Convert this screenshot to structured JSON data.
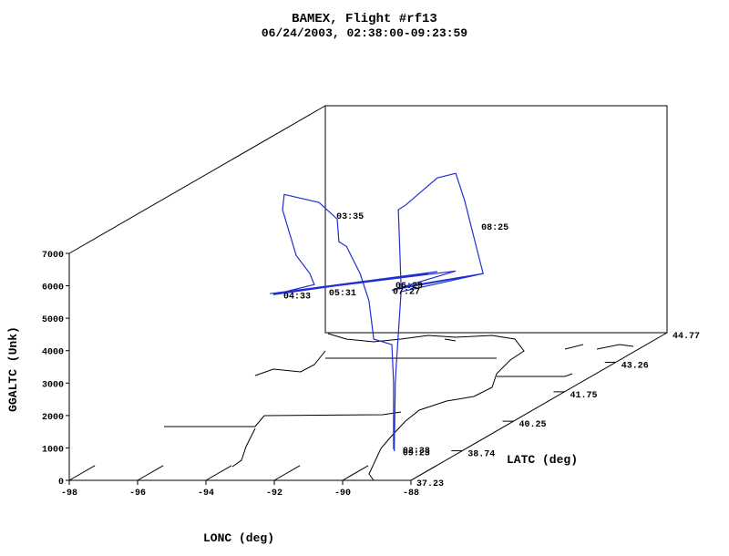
{
  "chart_data": {
    "type": "line3d",
    "title": "BAMEX, Flight #rf13",
    "subtitle": "06/24/2003, 02:38:00-09:23:59",
    "x_label": "LONC (deg)",
    "y_label": "LATC (deg)",
    "z_label": "GGALTC (Unk)",
    "xlim": [
      -98,
      -88
    ],
    "xticks": [
      -98,
      -96,
      -94,
      -92,
      -90,
      -88
    ],
    "ylim": [
      37.23,
      44.77
    ],
    "yticks": [
      37.23,
      38.74,
      40.25,
      41.75,
      43.26,
      44.77
    ],
    "zlim": [
      0,
      7000
    ],
    "zticks": [
      0,
      1000,
      2000,
      3000,
      4000,
      5000,
      6000,
      7000
    ],
    "track": {
      "color": "#1f2fd0",
      "lon": [
        -89.97,
        -89.97,
        -90.02,
        -90.55,
        -90.69,
        -90.95,
        -91.35,
        -91.57,
        -91.62,
        -92.15,
        -93.17,
        -93.22,
        -92.82,
        -92.42,
        -92.29,
        -93.49,
        -88.69,
        -93.59,
        -88.95,
        -93.49,
        -88.15,
        -90.02,
        -87.35,
        -89.75,
        -89.83,
        -89.62,
        -88.69,
        -88.15,
        -87.89,
        -87.62,
        -87.35,
        -89.75,
        -89.89,
        -89.92,
        -89.95
      ],
      "lat": [
        38.7,
        38.7,
        38.7,
        38.7,
        38.7,
        38.7,
        38.7,
        38.7,
        38.7,
        38.7,
        38.7,
        38.7,
        38.7,
        38.7,
        38.7,
        38.7,
        38.7,
        38.7,
        38.7,
        38.7,
        38.7,
        38.7,
        38.7,
        38.7,
        38.7,
        38.7,
        38.7,
        38.7,
        38.7,
        38.7,
        38.7,
        38.7,
        38.7,
        38.7,
        38.7
      ],
      "alt": [
        70,
        2120,
        3300,
        3470,
        4650,
        5490,
        6330,
        6470,
        7170,
        7680,
        7930,
        7460,
        6050,
        5490,
        5150,
        4840,
        5550,
        4870,
        5490,
        4870,
        5570,
        4980,
        5490,
        5070,
        7460,
        7600,
        8440,
        8580,
        7740,
        6610,
        5490,
        4930,
        2680,
        2120,
        10
      ]
    },
    "annotations": [
      {
        "text": "03:35",
        "lon": -91.75,
        "lat": 38.7,
        "alt": 7290
      },
      {
        "text": "04:33",
        "lon": -93.3,
        "lat": 38.7,
        "alt": 4840
      },
      {
        "text": "05:31",
        "lon": -91.97,
        "lat": 38.7,
        "alt": 4930
      },
      {
        "text": "06:29",
        "lon": -90.02,
        "lat": 38.7,
        "alt": 5150
      },
      {
        "text": "07:27",
        "lon": -90.1,
        "lat": 38.7,
        "alt": 4980
      },
      {
        "text": "08:25",
        "lon": -87.51,
        "lat": 38.7,
        "alt": 6950
      },
      {
        "text": "02:38",
        "lon": -89.81,
        "lat": 38.7,
        "alt": 70
      },
      {
        "text": "09:23",
        "lon": -89.81,
        "lat": 38.7,
        "alt": 0
      }
    ]
  }
}
